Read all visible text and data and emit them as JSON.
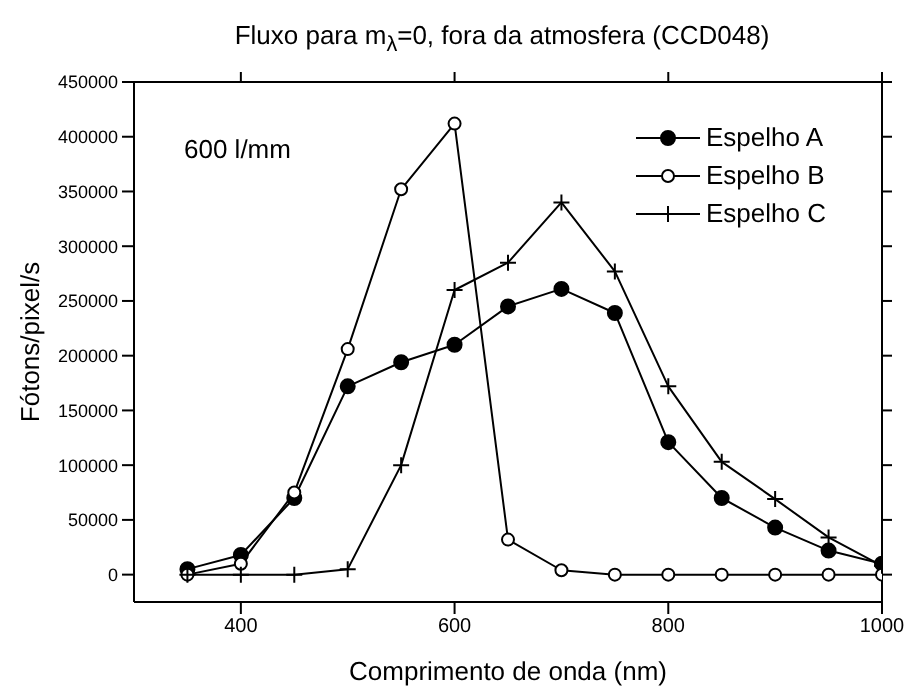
{
  "chart_data": {
    "type": "line",
    "title": "Fluxo para m$_{λ}$=0, fora da atmosfera (CCD048)",
    "xlabel": "Comprimento de onda (nm)",
    "ylabel": "Fótons/pixel/s",
    "annotations": [
      "600 l/mm"
    ],
    "x": [
      350,
      400,
      450,
      500,
      550,
      600,
      650,
      700,
      750,
      800,
      850,
      900,
      950,
      1000
    ],
    "series": [
      {
        "name": "Espelho A",
        "color": "#000000",
        "marker": "circle",
        "values": [
          5000,
          18000,
          70000,
          172000,
          194000,
          210000,
          245000,
          261000,
          239000,
          121000,
          70000,
          43000,
          22000,
          10000
        ]
      },
      {
        "name": "Espelho B",
        "color": "#000000",
        "marker": "open_circle",
        "values": [
          0,
          10000,
          75000,
          206000,
          352000,
          412000,
          32000,
          4000,
          0,
          0,
          0,
          0,
          0,
          0
        ]
      },
      {
        "name": "Espelho C",
        "color": "#000000",
        "marker": "cross",
        "values": [
          0,
          0,
          0,
          5000,
          100000,
          260000,
          285000,
          340000,
          277000,
          172000,
          103000,
          69000,
          34000,
          8000
        ]
      }
    ],
    "xlim": [
      300,
      1000
    ],
    "xticks": [
      400,
      600,
      800,
      1000
    ],
    "ylim": [
      -25000,
      450000
    ],
    "yticks": [
      0,
      50000,
      100000,
      150000,
      200000,
      250000,
      300000,
      350000,
      400000,
      450000
    ],
    "legend": "top right",
    "grid": false
  }
}
